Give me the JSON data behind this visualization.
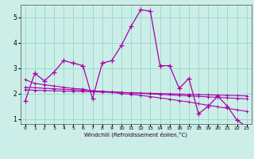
{
  "xlabel": "Windchill (Refroidissement éolien,°C)",
  "x": [
    0,
    1,
    2,
    3,
    4,
    5,
    6,
    7,
    8,
    9,
    10,
    11,
    12,
    13,
    14,
    15,
    16,
    17,
    18,
    19,
    20,
    21,
    22,
    23
  ],
  "y_main": [
    1.7,
    2.8,
    2.5,
    2.85,
    3.3,
    3.2,
    3.1,
    1.8,
    3.2,
    3.3,
    3.9,
    4.65,
    5.3,
    5.25,
    3.1,
    3.1,
    2.2,
    2.6,
    1.2,
    1.5,
    1.9,
    1.5,
    0.95,
    0.7
  ],
  "y_trend1": [
    2.55,
    2.4,
    2.35,
    2.3,
    2.25,
    2.2,
    2.18,
    2.1,
    2.08,
    2.05,
    2.0,
    1.97,
    1.93,
    1.88,
    1.83,
    1.78,
    1.72,
    1.67,
    1.6,
    1.54,
    1.48,
    1.42,
    1.36,
    1.3
  ],
  "y_trend2": [
    2.25,
    2.23,
    2.21,
    2.19,
    2.17,
    2.15,
    2.13,
    2.11,
    2.09,
    2.07,
    2.05,
    2.03,
    2.01,
    1.99,
    1.97,
    1.95,
    1.93,
    1.91,
    1.89,
    1.87,
    1.85,
    1.83,
    1.81,
    1.79
  ],
  "y_trend3": [
    2.15,
    2.13,
    2.12,
    2.11,
    2.1,
    2.09,
    2.08,
    2.07,
    2.06,
    2.05,
    2.04,
    2.03,
    2.02,
    2.01,
    2.0,
    1.99,
    1.98,
    1.97,
    1.96,
    1.95,
    1.94,
    1.93,
    1.92,
    1.91
  ],
  "color": "#aa00aa",
  "bg_color": "#cceee8",
  "grid_color": "#99ddcc",
  "ylim": [
    0.8,
    5.5
  ],
  "xlim": [
    -0.5,
    23.5
  ],
  "yticks": [
    1,
    2,
    3,
    4,
    5
  ],
  "xticks": [
    0,
    1,
    2,
    3,
    4,
    5,
    6,
    7,
    8,
    9,
    10,
    11,
    12,
    13,
    14,
    15,
    16,
    17,
    18,
    19,
    20,
    21,
    22,
    23
  ]
}
